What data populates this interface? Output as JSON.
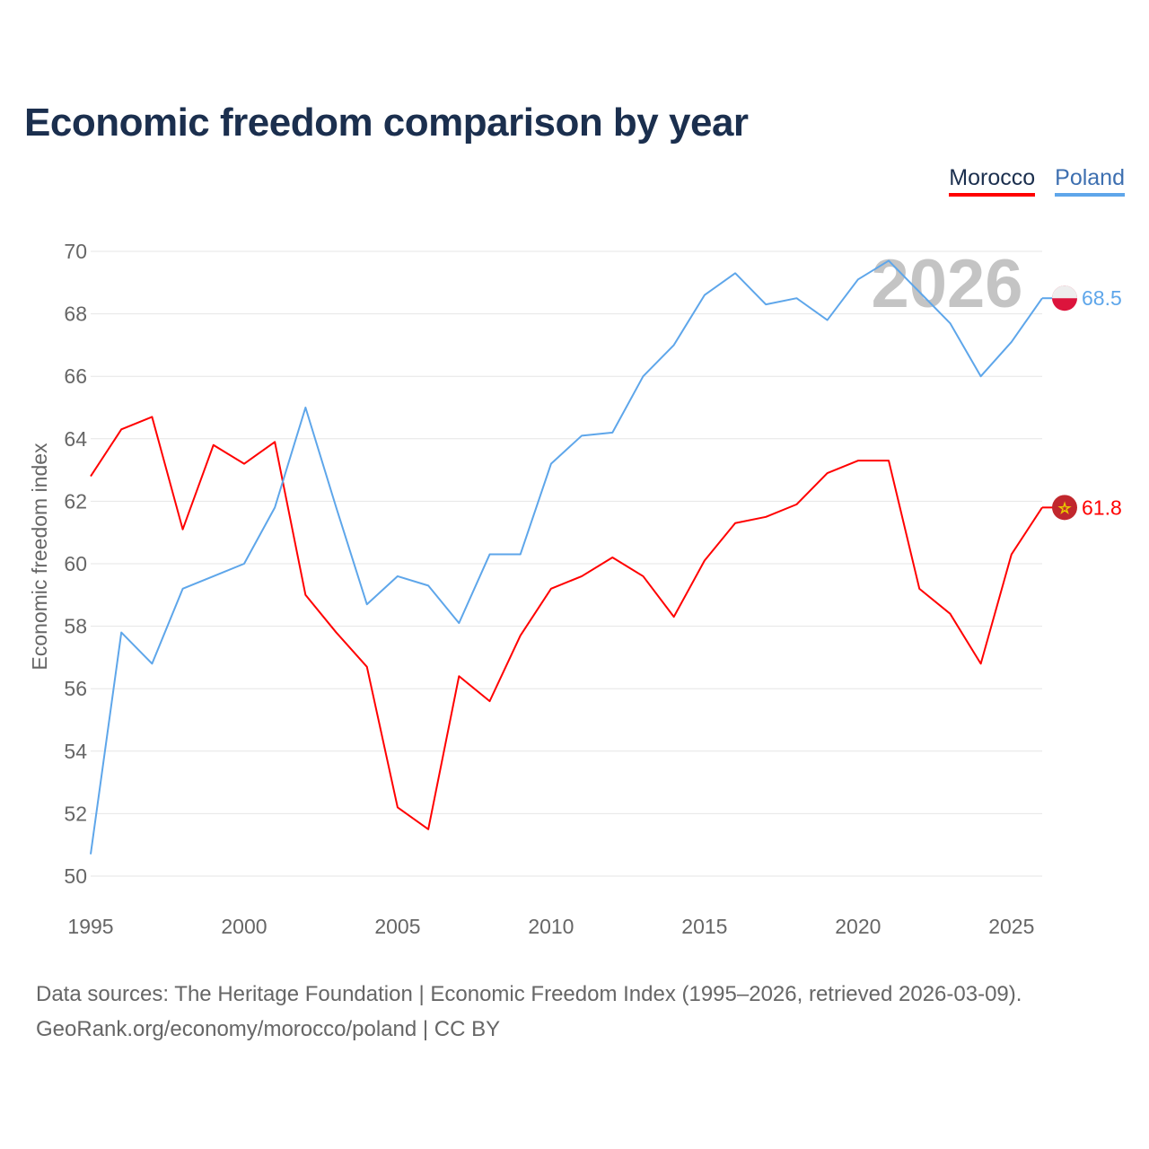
{
  "title": "Economic freedom comparison by year",
  "legend": [
    {
      "label": "Morocco",
      "color": "#ff0000"
    },
    {
      "label": "Poland",
      "color": "#5ea6ea"
    }
  ],
  "watermark_year": "2026",
  "chart_data": {
    "type": "line",
    "title": "Economic freedom comparison by year",
    "xlabel": "",
    "ylabel": "Economic freedom index",
    "xlim": [
      1995,
      2026
    ],
    "ylim": [
      50,
      70
    ],
    "x_ticks": [
      1995,
      2000,
      2005,
      2010,
      2015,
      2020,
      2025
    ],
    "y_ticks": [
      50,
      52,
      54,
      56,
      58,
      60,
      62,
      64,
      66,
      68,
      70
    ],
    "grid": true,
    "legend_position": "top-right",
    "x": [
      1995,
      1996,
      1997,
      1998,
      1999,
      2000,
      2001,
      2002,
      2003,
      2004,
      2005,
      2006,
      2007,
      2008,
      2009,
      2010,
      2011,
      2012,
      2013,
      2014,
      2015,
      2016,
      2017,
      2018,
      2019,
      2020,
      2021,
      2022,
      2023,
      2024,
      2025,
      2026
    ],
    "series": [
      {
        "name": "Morocco",
        "color": "#ff0000",
        "end_label": "61.8",
        "values": [
          62.8,
          64.3,
          64.7,
          61.1,
          63.8,
          63.2,
          63.9,
          59.0,
          57.8,
          56.7,
          52.2,
          51.5,
          56.4,
          55.6,
          57.7,
          59.2,
          59.6,
          60.2,
          59.6,
          58.3,
          60.1,
          61.3,
          61.5,
          61.9,
          62.9,
          63.3,
          63.3,
          59.2,
          58.4,
          56.8,
          60.3,
          61.8
        ]
      },
      {
        "name": "Poland",
        "color": "#5ea6ea",
        "end_label": "68.5",
        "values": [
          50.7,
          57.8,
          56.8,
          59.2,
          59.6,
          60.0,
          61.8,
          65.0,
          61.8,
          58.7,
          59.6,
          59.3,
          58.1,
          60.3,
          60.3,
          63.2,
          64.1,
          64.2,
          66.0,
          67.0,
          68.6,
          69.3,
          68.3,
          68.5,
          67.8,
          69.1,
          69.7,
          68.7,
          67.7,
          66.0,
          67.1,
          68.5
        ]
      }
    ]
  },
  "footer": {
    "line1": "Data sources: The Heritage Foundation | Economic Freedom Index (1995–2026, retrieved 2026-03-09).",
    "line2": "GeoRank.org/economy/morocco/poland | CC BY"
  }
}
